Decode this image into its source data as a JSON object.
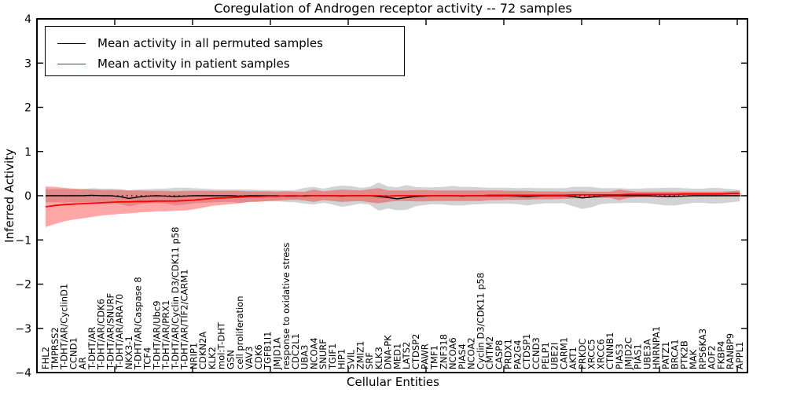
{
  "chart_data": {
    "type": "line",
    "title": "Coregulation of Androgen receptor activity -- 72 samples",
    "xlabel": "Cellular Entities",
    "ylabel": "Inferred Activity",
    "ylim": [
      -4,
      4
    ],
    "yticks": [
      4,
      3,
      2,
      1,
      0,
      -1,
      -2,
      -3,
      -4
    ],
    "grid": false,
    "legend_position": "upper left",
    "zero_line": {
      "style": "dashed",
      "color": "#000000",
      "y": 0
    },
    "categories": [
      "FHL2",
      "TMPRSS2",
      "T-DHT/AR/CyclinD1",
      "CCND1",
      "AR",
      "T-DHT/AR",
      "T-DHT/AR/CDK6",
      "T-DHT/AR/SNURF",
      "T-DHT/AR/ARA70",
      "NKX3-1",
      "T-DHT/AR/Caspase 8",
      "TCF4",
      "T-DHT/AR/Ubc9",
      "T-DHT/AR/PRX1",
      "T-DHT/AR/Cyclin D3/CDK11 p58",
      "T-DHT/AR/TIF2/CARM1",
      "NRIP1",
      "CDKN2A",
      "KLK2",
      "mol:T-DHT",
      "GSN",
      "cell proliferation",
      "VAV3",
      "CDK6",
      "TGFB1I1",
      "JMJD1A",
      "response to oxidative stress",
      "CDC2L1",
      "UBA3",
      "NCOA4",
      "SNURF",
      "TGIF1",
      "HIP1",
      "SVIL",
      "ZMIZ1",
      "SRF",
      "KLK3",
      "DNA-PK",
      "MED1",
      "LATS2",
      "CTDSP2",
      "PAWR",
      "TMF1",
      "ZNF318",
      "NCOA6",
      "PIAS4",
      "NCOA2",
      "Cyclin D3/CDK11 p58",
      "CMTM2",
      "CASP8",
      "PRDX1",
      "PA2G4",
      "CTDSP1",
      "CCND3",
      "PELP1",
      "UBE2I",
      "CARM1",
      "AKT1",
      "PRKDC",
      "XRCC5",
      "XRCC6",
      "CTNNB1",
      "PIAS3",
      "JMJD2C",
      "PIAS1",
      "UBE3A",
      "HNRNPA1",
      "PATZ1",
      "BRCA1",
      "PTK2B",
      "MAK",
      "RPS6KA3",
      "AOF2",
      "FKBP4",
      "RANBP9",
      "APPL1"
    ],
    "series": [
      {
        "name": "Mean activity in all permuted samples",
        "color": "#000000",
        "band_color": "rgba(128,128,128,0.35)",
        "values": [
          0,
          0,
          0,
          0,
          0,
          0.01,
          0,
          0,
          -0.02,
          -0.06,
          -0.03,
          -0.01,
          0,
          -0.01,
          -0.02,
          -0.01,
          0,
          0,
          0,
          0,
          0,
          -0.01,
          0,
          0,
          0,
          0,
          -0.01,
          -0.01,
          0,
          0,
          0,
          0,
          -0.01,
          0,
          0,
          0,
          -0.02,
          -0.04,
          -0.07,
          -0.04,
          -0.02,
          -0.01,
          0,
          0,
          0,
          -0.01,
          0,
          0,
          0,
          0,
          0,
          -0.01,
          -0.02,
          -0.01,
          0,
          0,
          0,
          -0.02,
          -0.05,
          -0.03,
          -0.01,
          0,
          0,
          0,
          0,
          0,
          -0.01,
          -0.02,
          -0.02,
          -0.01,
          0,
          0,
          0,
          0,
          0,
          0
        ],
        "std": [
          0.15,
          0.15,
          0.15,
          0.15,
          0.15,
          0.16,
          0.16,
          0.16,
          0.17,
          0.18,
          0.17,
          0.16,
          0.16,
          0.17,
          0.2,
          0.19,
          0.17,
          0.16,
          0.15,
          0.14,
          0.14,
          0.15,
          0.14,
          0.13,
          0.13,
          0.13,
          0.13,
          0.14,
          0.18,
          0.2,
          0.16,
          0.2,
          0.24,
          0.22,
          0.18,
          0.2,
          0.32,
          0.25,
          0.26,
          0.28,
          0.22,
          0.2,
          0.19,
          0.2,
          0.22,
          0.21,
          0.2,
          0.19,
          0.18,
          0.18,
          0.18,
          0.18,
          0.2,
          0.18,
          0.17,
          0.17,
          0.17,
          0.22,
          0.25,
          0.23,
          0.18,
          0.17,
          0.17,
          0.16,
          0.16,
          0.17,
          0.18,
          0.2,
          0.2,
          0.18,
          0.16,
          0.16,
          0.18,
          0.17,
          0.15,
          0.13
        ]
      },
      {
        "name": "Mean activity in patient samples",
        "color": "#ff0000",
        "band_color": "rgba(255,0,0,0.35)",
        "values": [
          -0.25,
          -0.22,
          -0.2,
          -0.19,
          -0.18,
          -0.17,
          -0.16,
          -0.15,
          -0.14,
          -0.14,
          -0.13,
          -0.13,
          -0.12,
          -0.12,
          -0.12,
          -0.11,
          -0.1,
          -0.08,
          -0.06,
          -0.05,
          -0.04,
          -0.03,
          -0.02,
          -0.02,
          -0.01,
          -0.01,
          0,
          0,
          -0.01,
          0,
          0,
          0,
          0,
          0,
          0,
          0,
          0,
          -0.01,
          0,
          0,
          0,
          0,
          0,
          0,
          0,
          0,
          0,
          0,
          0.01,
          0.01,
          0.01,
          0.01,
          0.01,
          0.01,
          0.01,
          0.01,
          0.01,
          0.02,
          0.02,
          0.02,
          0.02,
          0.02,
          0.02,
          0.03,
          0.03,
          0.03,
          0.03,
          0.03,
          0.03,
          0.04,
          0.04,
          0.04,
          0.04,
          0.04,
          0.05,
          0.05
        ],
        "std": [
          0.46,
          0.42,
          0.38,
          0.35,
          0.33,
          0.31,
          0.29,
          0.28,
          0.27,
          0.26,
          0.25,
          0.24,
          0.23,
          0.23,
          0.22,
          0.22,
          0.21,
          0.19,
          0.17,
          0.16,
          0.15,
          0.14,
          0.12,
          0.12,
          0.11,
          0.1,
          0.1,
          0.09,
          0.1,
          0.14,
          0.1,
          0.12,
          0.14,
          0.13,
          0.12,
          0.15,
          0.17,
          0.13,
          0.12,
          0.12,
          0.13,
          0.13,
          0.12,
          0.12,
          0.12,
          0.12,
          0.12,
          0.12,
          0.11,
          0.11,
          0.1,
          0.1,
          0.1,
          0.09,
          0.09,
          0.09,
          0.08,
          0.08,
          0.08,
          0.07,
          0.07,
          0.07,
          0.12,
          0.08,
          0.06,
          0.06,
          0.06,
          0.06,
          0.06,
          0.05,
          0.05,
          0.05,
          0.05,
          0.05,
          0.05,
          0.06
        ]
      }
    ]
  }
}
